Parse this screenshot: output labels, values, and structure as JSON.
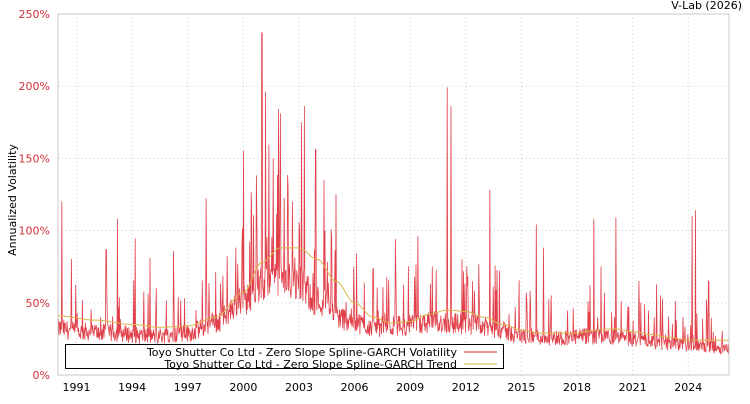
{
  "credit": "V-Lab (2026)",
  "chart_data": {
    "type": "line",
    "title": "",
    "xlabel": "",
    "ylabel": "Annualized Volatility",
    "xlim": [
      1990.0,
      2026.2
    ],
    "ylim": [
      0,
      250
    ],
    "y_ticks": [
      0,
      50,
      100,
      150,
      200,
      250
    ],
    "y_tick_labels": [
      "0%",
      "50%",
      "100%",
      "150%",
      "200%",
      "250%"
    ],
    "x_ticks": [
      1991,
      1994,
      1997,
      2000,
      2003,
      2006,
      2009,
      2012,
      2015,
      2018,
      2021,
      2024
    ],
    "x_tick_labels": [
      "1991",
      "1994",
      "1997",
      "2000",
      "2003",
      "2006",
      "2009",
      "2012",
      "2015",
      "2018",
      "2021",
      "2024"
    ],
    "grid": true,
    "legend_position": "lower left (inside)",
    "colors": {
      "volatility": "#dc1f2a",
      "trend": "#d9b54a",
      "tick_labels": "#d3303a",
      "grid": "#c8c8c8",
      "axis": "#c8c8c8"
    },
    "series": [
      {
        "name": "Toyo Shutter Co Ltd - Zero Slope Spline-GARCH Volatility",
        "baseline": {
          "x": [
            1990.0,
            1991.0,
            1993.0,
            1995.0,
            1997.0,
            1998.5,
            2000.0,
            2001.0,
            2002.0,
            2003.0,
            2004.0,
            2005.5,
            2007.0,
            2009.0,
            2010.5,
            2012.0,
            2013.5,
            2015.0,
            2017.0,
            2019.0,
            2021.0,
            2023.0,
            2025.0,
            2026.2
          ],
          "y": [
            30,
            28,
            27,
            25,
            27,
            34,
            48,
            58,
            62,
            58,
            48,
            36,
            31,
            32,
            34,
            33,
            30,
            25,
            24,
            25,
            23,
            20,
            18,
            17
          ]
        },
        "peaks": [
          {
            "x": 1990.2,
            "y": 120
          },
          {
            "x": 1992.6,
            "y": 87
          },
          {
            "x": 1993.2,
            "y": 108
          },
          {
            "x": 1995.3,
            "y": 60
          },
          {
            "x": 1998.0,
            "y": 122
          },
          {
            "x": 1999.6,
            "y": 88
          },
          {
            "x": 2000.0,
            "y": 155
          },
          {
            "x": 2000.7,
            "y": 138
          },
          {
            "x": 2001.0,
            "y": 237
          },
          {
            "x": 2001.2,
            "y": 196
          },
          {
            "x": 2001.6,
            "y": 150
          },
          {
            "x": 2001.9,
            "y": 184
          },
          {
            "x": 2002.0,
            "y": 181
          },
          {
            "x": 2002.4,
            "y": 130
          },
          {
            "x": 2003.3,
            "y": 186
          },
          {
            "x": 2003.9,
            "y": 156
          },
          {
            "x": 2005.0,
            "y": 125
          },
          {
            "x": 2006.1,
            "y": 84
          },
          {
            "x": 2008.2,
            "y": 94
          },
          {
            "x": 2008.9,
            "y": 75
          },
          {
            "x": 2011.0,
            "y": 199
          },
          {
            "x": 2011.2,
            "y": 186
          },
          {
            "x": 2011.8,
            "y": 80
          },
          {
            "x": 2013.3,
            "y": 128
          },
          {
            "x": 2015.8,
            "y": 104
          },
          {
            "x": 2016.2,
            "y": 88
          },
          {
            "x": 2016.6,
            "y": 55
          },
          {
            "x": 2018.9,
            "y": 108
          },
          {
            "x": 2019.3,
            "y": 75
          },
          {
            "x": 2020.1,
            "y": 109
          },
          {
            "x": 2022.5,
            "y": 55
          },
          {
            "x": 2024.2,
            "y": 110
          },
          {
            "x": 2024.4,
            "y": 114
          },
          {
            "x": 2025.1,
            "y": 65
          }
        ]
      },
      {
        "name": "Toyo Shutter Co Ltd - Zero Slope Spline-GARCH Trend",
        "x": [
          1990.0,
          1992.0,
          1994.0,
          1995.5,
          1997.0,
          1998.5,
          2000.0,
          2001.0,
          2002.0,
          2003.0,
          2004.0,
          2005.0,
          2006.0,
          2007.0,
          2008.0,
          2009.0,
          2010.0,
          2011.0,
          2012.0,
          2013.0,
          2014.0,
          2015.0,
          2016.0,
          2017.0,
          2018.0,
          2019.0,
          2020.0,
          2021.0,
          2022.0,
          2023.0,
          2024.0,
          2025.0,
          2026.2
        ],
        "y": [
          41,
          38,
          35,
          33,
          34,
          40,
          57,
          78,
          88,
          88,
          80,
          65,
          50,
          40,
          36,
          37,
          42,
          45,
          44,
          40,
          35,
          31,
          29,
          29,
          29,
          31,
          32,
          30,
          28,
          26,
          24,
          24,
          24
        ]
      }
    ]
  },
  "legend": {
    "items": [
      {
        "label": "Toyo Shutter Co Ltd - Zero Slope Spline-GARCH Volatility",
        "color": "#dc1f2a"
      },
      {
        "label": "Toyo Shutter Co Ltd - Zero Slope Spline-GARCH Trend",
        "color": "#d9b54a"
      }
    ]
  }
}
